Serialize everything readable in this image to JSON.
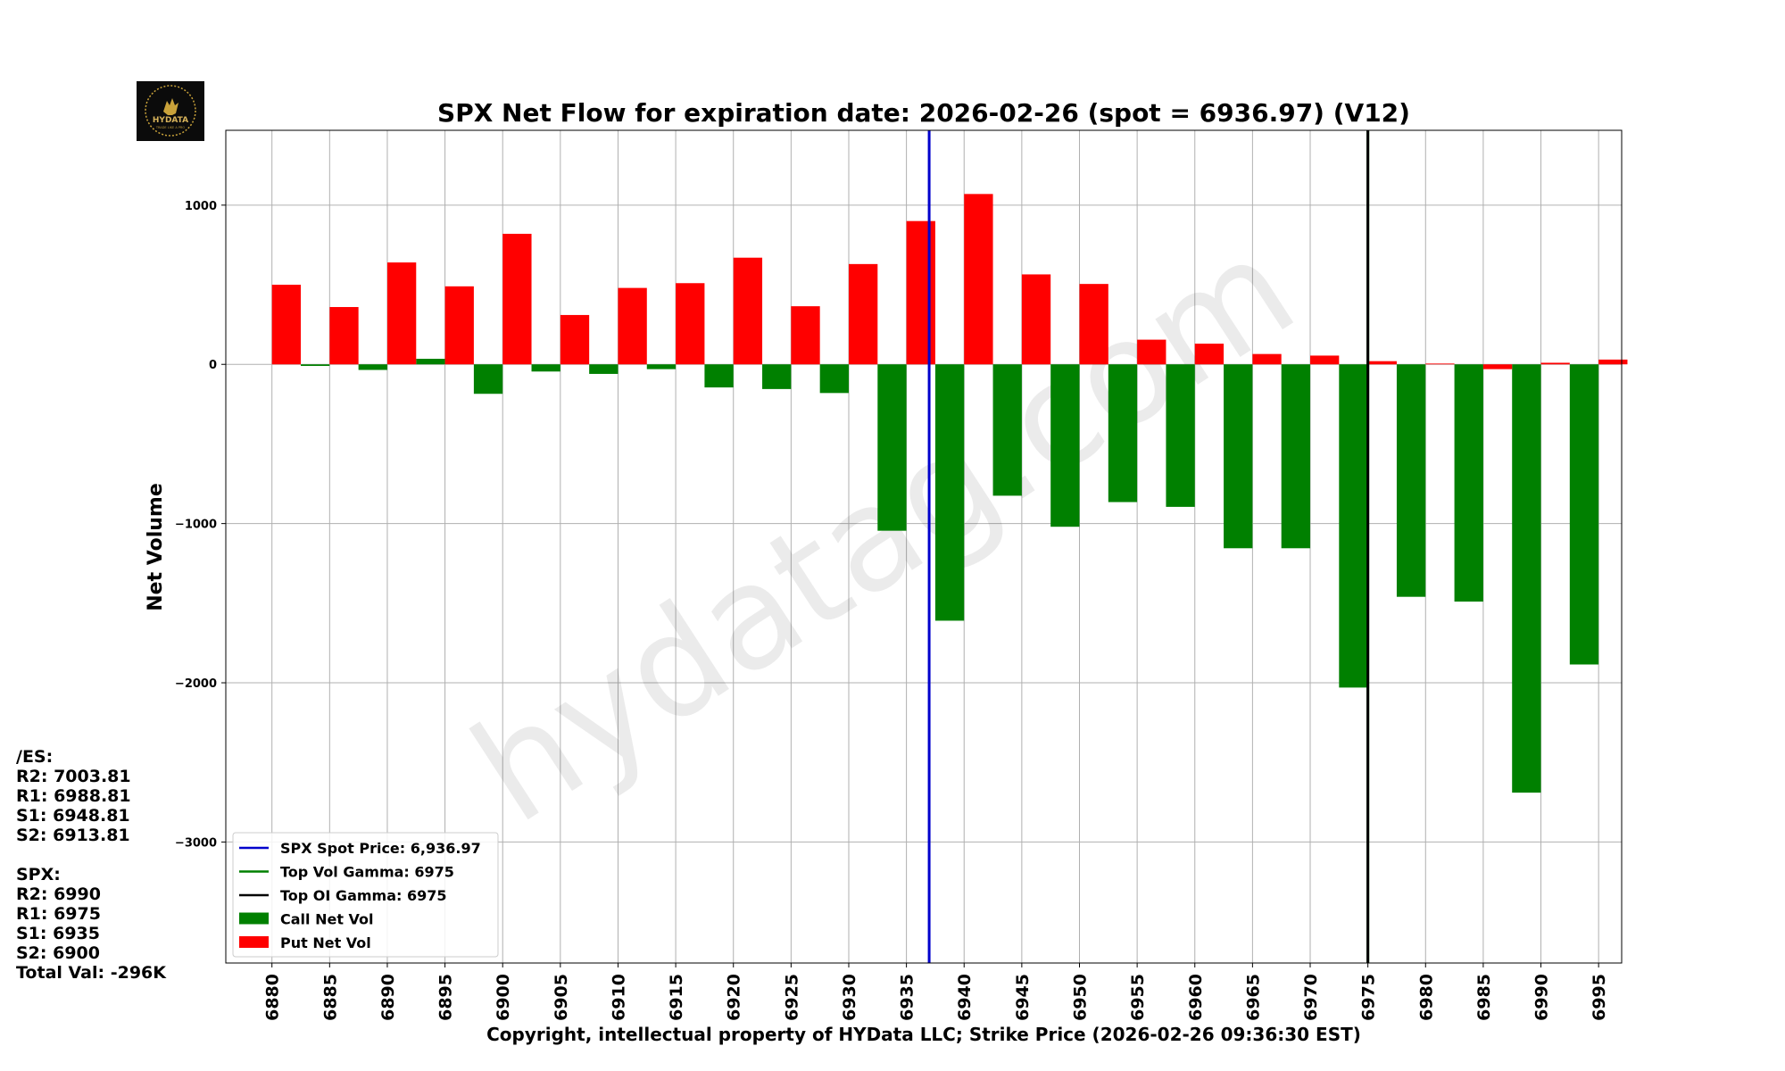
{
  "chart_data": {
    "type": "bar",
    "title": "SPX Net Flow for expiration date: 2026-02-26 (spot = 6936.97) (V12)",
    "xlabel": "Copyright, intellectual property of HYData LLC; Strike Price (2026-02-26 09:36:30 EST)",
    "ylabel": "Net Volume",
    "ylim": [
      -3760,
      1470
    ],
    "yticks": [
      1000,
      0,
      -1000,
      -2000,
      -3000
    ],
    "ytick_labels": [
      "1000",
      "0",
      "−1000",
      "−2000",
      "−3000"
    ],
    "grid": true,
    "watermark": "hydatag.com",
    "categories": [
      "6880",
      "6885",
      "6890",
      "6895",
      "6900",
      "6905",
      "6910",
      "6915",
      "6920",
      "6925",
      "6930",
      "6935",
      "6940",
      "6945",
      "6950",
      "6955",
      "6960",
      "6965",
      "6970",
      "6975",
      "6980",
      "6985",
      "6990",
      "6995"
    ],
    "series": [
      {
        "name": "Call Net Vol",
        "color": "#008000",
        "values": [
          0,
          -10,
          -35,
          35,
          -185,
          -45,
          -60,
          -30,
          -145,
          -155,
          -180,
          -1045,
          -1610,
          -825,
          -1020,
          -865,
          -895,
          -1155,
          -1155,
          -2030,
          -1460,
          -1490,
          -2690,
          -1885
        ]
      },
      {
        "name": "Put Net Vol",
        "color": "#ff0000",
        "values": [
          500,
          360,
          640,
          490,
          820,
          310,
          480,
          510,
          670,
          365,
          630,
          900,
          1070,
          565,
          505,
          155,
          130,
          65,
          55,
          20,
          5,
          -30,
          10,
          30
        ]
      }
    ],
    "vlines": [
      {
        "name": "SPX Spot Price",
        "value": 6936.97,
        "color": "#0000cc"
      },
      {
        "name": "Top Vol Gamma",
        "value": 6975,
        "color": "#008000"
      },
      {
        "name": "Top OI Gamma",
        "value": 6975,
        "color": "#000000"
      }
    ],
    "legend_position": "lower-left",
    "legend": [
      {
        "label": "SPX Spot Price: 6,936.97",
        "kind": "line",
        "color": "#0000cc"
      },
      {
        "label": "Top Vol Gamma: 6975",
        "kind": "line",
        "color": "#008000"
      },
      {
        "label": "Top OI Gamma: 6975",
        "kind": "line",
        "color": "#000000"
      },
      {
        "label": "Call Net Vol",
        "kind": "patch",
        "color": "#008000"
      },
      {
        "label": "Put Net Vol",
        "kind": "patch",
        "color": "#ff0000"
      }
    ]
  },
  "logo": {
    "text": "HYDATA",
    "subtext": "TRADE LIKE A PRO"
  },
  "side_panel": {
    "es": {
      "header": "/ES:",
      "r2": "R2: 7003.81",
      "r1": "R1: 6988.81",
      "s1": "S1: 6948.81",
      "s2": "S2: 6913.81"
    },
    "spx": {
      "header": "SPX:",
      "r2": "R2: 6990",
      "r1": "R1: 6975",
      "s1": "S1: 6935",
      "s2": "S2: 6900",
      "total": "Total Val: -296K"
    }
  }
}
